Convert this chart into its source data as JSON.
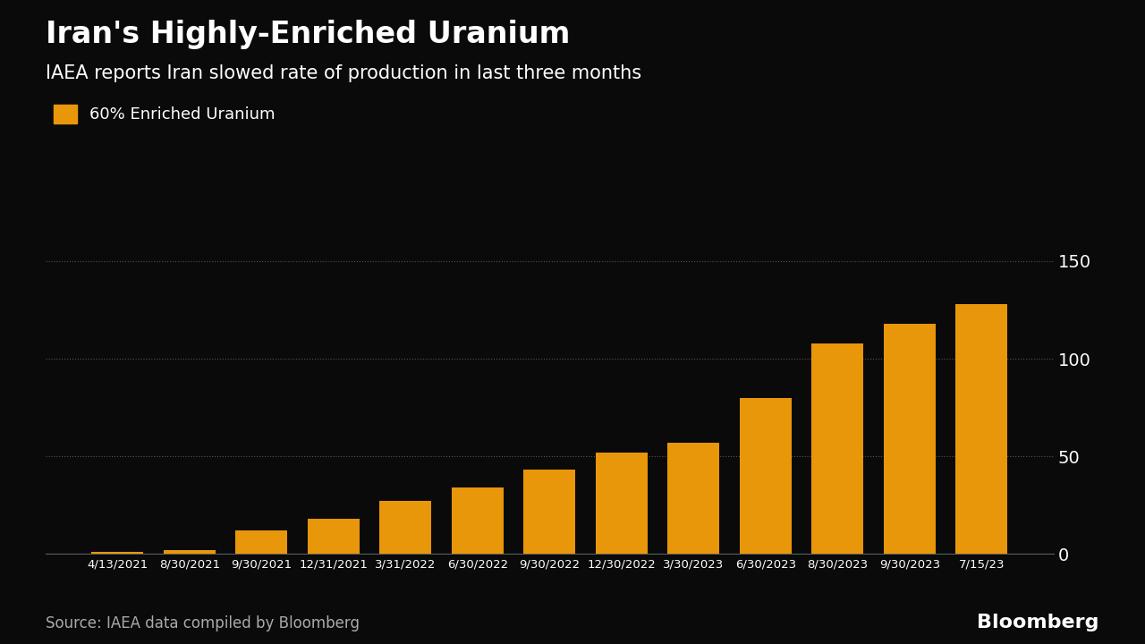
{
  "title": "Iran's Highly-Enriched Uranium",
  "subtitle": "IAEA reports Iran slowed rate of production in last three months",
  "legend_label": "60% Enriched Uranium",
  "source": "Source: IAEA data compiled by Bloomberg",
  "bloomberg": "Bloomberg",
  "categories": [
    "4/13/2021",
    "8/30/2021",
    "9/30/2021",
    "12/31/2021",
    "3/31/2022",
    "6/30/2022",
    "9/30/2022",
    "12/30/2022",
    "3/30/2023",
    "6/30/2023",
    "8/30/2023",
    "9/30/2023",
    "7/15/23"
  ],
  "values": [
    1,
    2,
    12,
    18,
    27,
    34,
    43,
    52,
    57,
    80,
    108,
    118,
    128
  ],
  "bar_color": "#E8960A",
  "background_color": "#0a0a0a",
  "text_color": "#ffffff",
  "grid_color": "#555555",
  "ylim": [
    0,
    165
  ],
  "yticks": [
    0,
    50,
    100,
    150
  ],
  "title_fontsize": 24,
  "subtitle_fontsize": 15,
  "tick_fontsize": 14,
  "source_fontsize": 12,
  "bloomberg_fontsize": 16
}
